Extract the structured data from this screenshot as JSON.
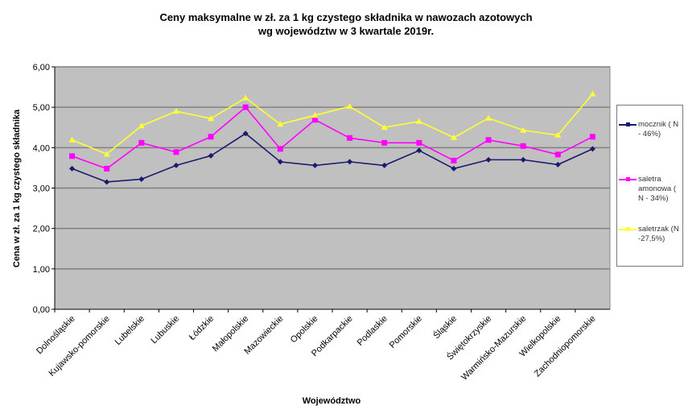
{
  "chart_data": {
    "type": "line",
    "title": "Ceny maksymalne  w zł. za 1 kg czystego składnika w nawozach azotowych",
    "subtitle": "wg województw w 3 kwartale  2019r.",
    "xlabel": "Województwo",
    "ylabel": "Cena w zł. za 1 kg czystego składnika",
    "ylim": [
      0,
      6
    ],
    "yticks": [
      "0,00",
      "1,00",
      "2,00",
      "3,00",
      "4,00",
      "5,00",
      "6,00"
    ],
    "grid": true,
    "legend_position": "right",
    "plot_background": "#c0c0c0",
    "categories": [
      "Dolnośląskie",
      "Kujawsko-pomorskie",
      "Lubelskie",
      "Lubuskie",
      "Łódzkie",
      "Małopolskie",
      "Mazowieckie",
      "Opolskie",
      "Podkarpackie",
      "Podlaskie",
      "Pomorskie",
      "Śląskie",
      "Świętokrzyskie",
      "Warmińsko-Mazurskie",
      "Wielkopolskie",
      "Zachodniopomorskie"
    ],
    "series": [
      {
        "name": "mocznik ( N - 46%)",
        "color": "#1a1a6e",
        "marker": "diamond",
        "values": [
          3.48,
          3.15,
          3.22,
          3.56,
          3.8,
          4.35,
          3.65,
          3.56,
          3.65,
          3.56,
          3.93,
          3.48,
          3.7,
          3.7,
          3.58,
          3.97
        ]
      },
      {
        "name": "saletra amonowa ( N - 34%)",
        "color": "#ff00ff",
        "marker": "square",
        "values": [
          3.79,
          3.48,
          4.12,
          3.89,
          4.27,
          5.0,
          3.97,
          4.69,
          4.24,
          4.12,
          4.12,
          3.68,
          4.19,
          4.04,
          3.83,
          4.27
        ]
      },
      {
        "name": "saletrzak (N -27,5%)",
        "color": "#ffff33",
        "marker": "triangle",
        "values": [
          4.19,
          3.84,
          4.54,
          4.9,
          4.72,
          5.23,
          4.58,
          4.8,
          5.02,
          4.5,
          4.65,
          4.25,
          4.73,
          4.43,
          4.31,
          5.33
        ]
      }
    ]
  }
}
